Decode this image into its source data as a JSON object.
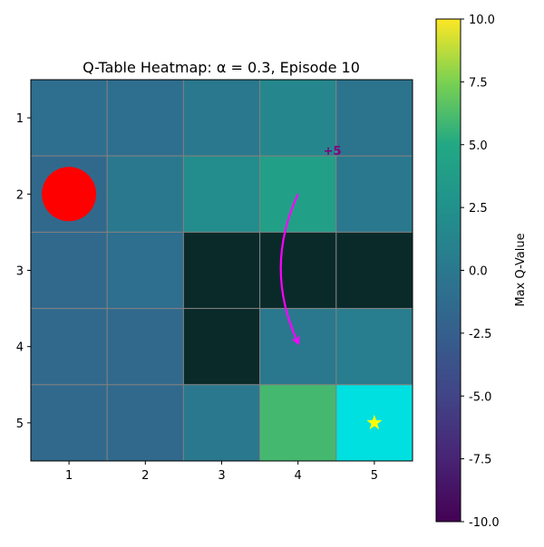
{
  "chart_data": {
    "type": "heatmap",
    "title": "Q-Table Heatmap: α = 0.3, Episode 10",
    "xlabel": "",
    "ylabel": "",
    "x_ticks": [
      "1",
      "2",
      "3",
      "4",
      "5"
    ],
    "y_ticks": [
      "1",
      "2",
      "3",
      "4",
      "5"
    ],
    "grid": true,
    "colormap": "viridis",
    "values": [
      [
        -1.0,
        -1.0,
        0.0,
        1.5,
        -0.5
      ],
      [
        null,
        0.0,
        2.0,
        4.0,
        0.0
      ],
      [
        -1.5,
        -1.0,
        null,
        null,
        null
      ],
      [
        -1.5,
        -1.5,
        null,
        0.0,
        0.5
      ],
      [
        -1.5,
        -1.5,
        0.0,
        6.0,
        null
      ]
    ],
    "special_cells": [
      {
        "row": 3,
        "col": 3,
        "kind": "obstacle",
        "color": "#0a2a2a"
      },
      {
        "row": 3,
        "col": 4,
        "kind": "obstacle",
        "color": "#0a2a2a"
      },
      {
        "row": 3,
        "col": 5,
        "kind": "obstacle",
        "color": "#0a2a2a"
      },
      {
        "row": 4,
        "col": 3,
        "kind": "obstacle",
        "color": "#0a2a2a"
      },
      {
        "row": 5,
        "col": 5,
        "kind": "goal",
        "color": "#00e0e0"
      }
    ],
    "agent": {
      "row": 2,
      "col": 1,
      "color": "#ff0000"
    },
    "goal_marker": {
      "row": 5,
      "col": 5,
      "color": "#ffff00",
      "icon": "star-icon"
    },
    "annotation": {
      "text": "+5",
      "color": "#800080",
      "row": 1.65,
      "col": 4.45
    },
    "arrow": {
      "from_row": 2.0,
      "from_col": 4.0,
      "to_row": 3.95,
      "to_col": 4.0,
      "color": "#ff00ff"
    },
    "colorbar": {
      "label": "Max Q-Value",
      "min": -10.0,
      "max": 10.0,
      "ticks": [
        "-10.0",
        "-7.5",
        "-5.0",
        "-2.5",
        "0.0",
        "2.5",
        "5.0",
        "7.5",
        "10.0"
      ]
    },
    "grid_color": "#808080"
  }
}
